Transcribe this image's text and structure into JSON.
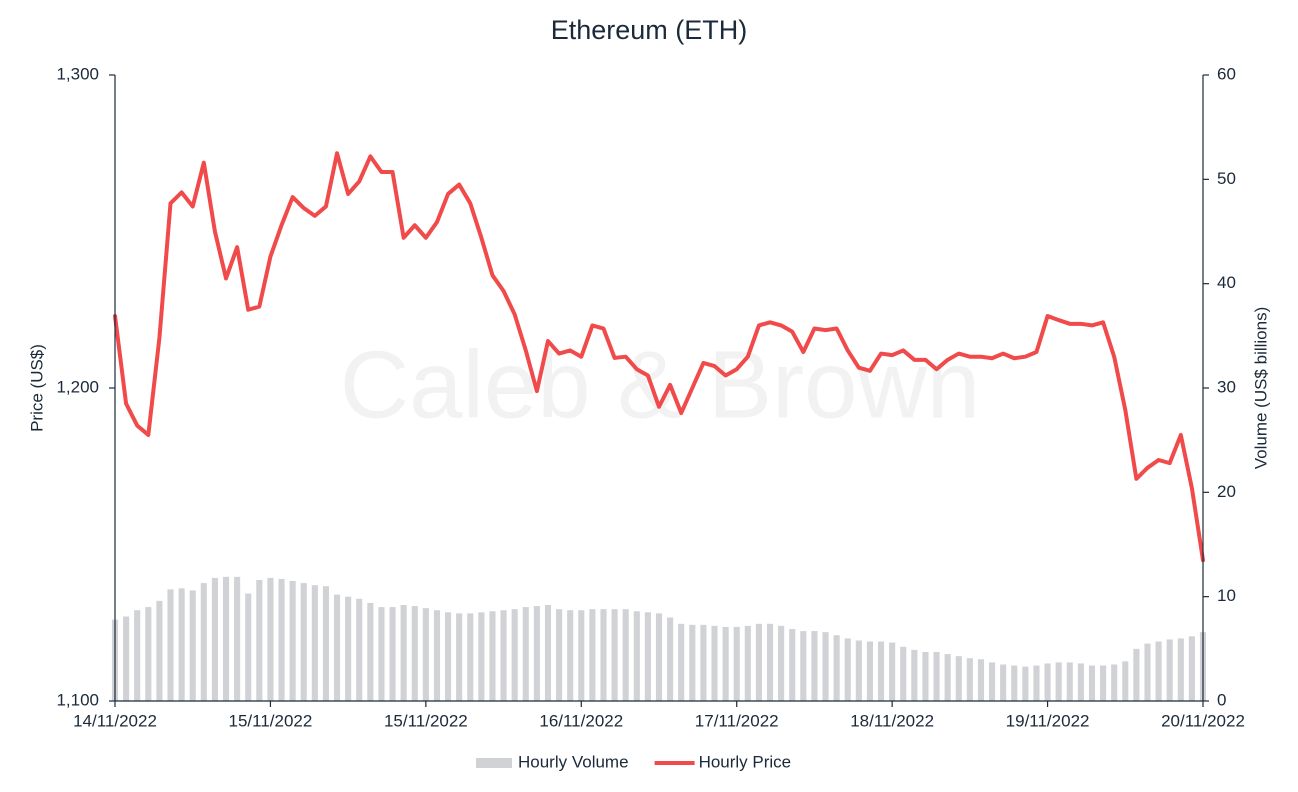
{
  "chart_data": {
    "type": "combo",
    "title": "Ethereum (ETH)",
    "watermark": "Caleb & Brown",
    "ylabel": "Price (US$)",
    "y2label": "Volume (US$ billions)",
    "ylim": [
      1100,
      1300
    ],
    "yticks": [
      {
        "value": 1100,
        "label": "1,100"
      },
      {
        "value": 1200,
        "label": "1,200"
      },
      {
        "value": 1300,
        "label": "1,300"
      }
    ],
    "y2lim": [
      0,
      60
    ],
    "y2ticks": [
      0,
      10,
      20,
      30,
      40,
      50,
      60
    ],
    "legend": "bottom",
    "categories": [
      "14/11/2022",
      null,
      null,
      null,
      null,
      null,
      null,
      null,
      null,
      null,
      null,
      null,
      null,
      null,
      "15/11/2022",
      null,
      null,
      null,
      null,
      null,
      null,
      null,
      null,
      null,
      null,
      null,
      null,
      null,
      "15/11/2022",
      null,
      null,
      null,
      null,
      null,
      null,
      null,
      null,
      null,
      null,
      null,
      null,
      null,
      "16/11/2022",
      null,
      null,
      null,
      null,
      null,
      null,
      null,
      null,
      null,
      null,
      null,
      null,
      null,
      "17/11/2022",
      null,
      null,
      null,
      null,
      null,
      null,
      null,
      null,
      null,
      null,
      null,
      null,
      null,
      "18/11/2022",
      null,
      null,
      null,
      null,
      null,
      null,
      null,
      null,
      null,
      null,
      null,
      null,
      null,
      "19/11/2022",
      null,
      null,
      null,
      null,
      null,
      null,
      null,
      null,
      null,
      null,
      null,
      null,
      null,
      "20/11/2022"
    ],
    "series": [
      {
        "name": "Hourly Volume",
        "type": "bar",
        "axis": "y2",
        "color": "#d0d2d6",
        "values": [
          7.8,
          8.1,
          8.7,
          9.0,
          9.6,
          10.7,
          10.8,
          10.6,
          11.3,
          11.8,
          11.9,
          11.9,
          10.3,
          11.6,
          11.8,
          11.7,
          11.5,
          11.3,
          11.1,
          11.0,
          10.2,
          10.0,
          9.8,
          9.4,
          9.0,
          9.0,
          9.2,
          9.1,
          8.9,
          8.7,
          8.5,
          8.4,
          8.4,
          8.5,
          8.6,
          8.7,
          8.8,
          9.0,
          9.1,
          9.2,
          8.8,
          8.7,
          8.7,
          8.8,
          8.8,
          8.8,
          8.8,
          8.6,
          8.5,
          8.4,
          8.0,
          7.4,
          7.3,
          7.3,
          7.2,
          7.1,
          7.1,
          7.2,
          7.4,
          7.4,
          7.2,
          6.9,
          6.7,
          6.7,
          6.6,
          6.3,
          6.0,
          5.8,
          5.7,
          5.7,
          5.6,
          5.2,
          4.9,
          4.7,
          4.7,
          4.5,
          4.3,
          4.1,
          4.0,
          3.7,
          3.5,
          3.4,
          3.3,
          3.4,
          3.6,
          3.7,
          3.7,
          3.6,
          3.4,
          3.4,
          3.5,
          3.8,
          5.0,
          5.5,
          5.7,
          5.9,
          6.0,
          6.2,
          6.6
        ]
      },
      {
        "name": "Hourly Price",
        "type": "line",
        "color": "#f04a4a",
        "values": [
          1223,
          1195,
          1188,
          1185,
          1216,
          1259,
          1262.5,
          1258,
          1272,
          1250,
          1235,
          1245,
          1225,
          1226,
          1242,
          1252,
          1261,
          1257.5,
          1255,
          1258,
          1275,
          1262,
          1266,
          1274,
          1269,
          1269,
          1248,
          1252,
          1248,
          1253,
          1262,
          1265,
          1259,
          1248,
          1236,
          1231,
          1223.5,
          1212,
          1199,
          1215,
          1211,
          1212,
          1210,
          1220,
          1219,
          1209.6,
          1210,
          1206,
          1204,
          1194,
          1201,
          1192,
          1200,
          1208,
          1207,
          1204,
          1206,
          1210,
          1220,
          1221,
          1220,
          1218,
          1211.5,
          1219,
          1218.5,
          1219,
          1212,
          1206.5,
          1205.5,
          1211,
          1210.5,
          1212,
          1209,
          1209,
          1206,
          1209,
          1211,
          1210,
          1210,
          1209.5,
          1211,
          1209.5,
          1210,
          1211.5,
          1223,
          1221.7,
          1220.5,
          1220.5,
          1220,
          1221,
          1210,
          1193,
          1171,
          1174.5,
          1177,
          1176,
          1185,
          1168,
          1145
        ]
      }
    ]
  }
}
